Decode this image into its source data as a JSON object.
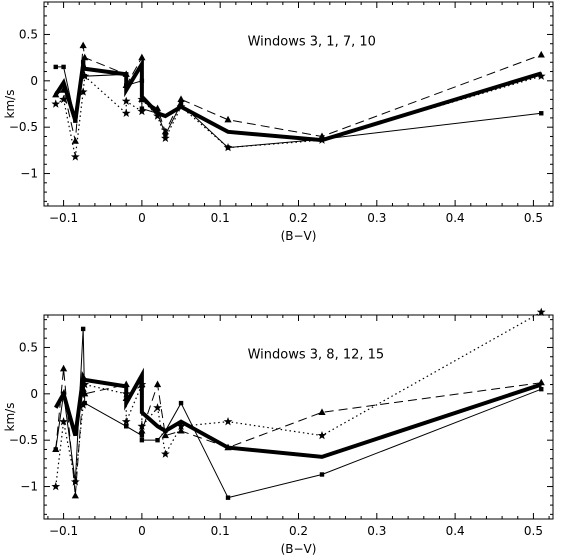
{
  "chart_data": [
    {
      "type": "line",
      "annotation": "Windows 3, 1, 7, 10",
      "xlabel": "(B−V)",
      "ylabel": "km/s",
      "xlim": [
        -0.125,
        0.525
      ],
      "ylim": [
        -1.35,
        0.85
      ],
      "xticks": [
        -0.1,
        0,
        0.1,
        0.2,
        0.3,
        0.4,
        0.5
      ],
      "xticklabels": [
        "−0.1",
        "0",
        "0.1",
        "0.2",
        "0.3",
        "0.4",
        "0.5"
      ],
      "yticks": [
        0.5,
        0,
        -0.5,
        -1
      ],
      "yticklabels": [
        "0.5",
        "0",
        "−0.5",
        "−1"
      ],
      "x": [
        -0.11,
        -0.1,
        -0.085,
        -0.075,
        -0.073,
        -0.02,
        -0.02,
        0.0,
        0.0,
        0.02,
        0.03,
        0.05,
        0.11,
        0.23,
        0.51
      ],
      "series": [
        {
          "style": "thick",
          "marker": "none",
          "values": [
            -0.15,
            -0.02,
            -0.43,
            0.18,
            0.13,
            0.07,
            -0.1,
            0.18,
            -0.17,
            -0.35,
            -0.38,
            -0.28,
            -0.55,
            -0.64,
            0.08
          ]
        },
        {
          "style": "thin",
          "marker": "square",
          "values": [
            0.15,
            0.15,
            -0.43,
            0.2,
            0.05,
            0.07,
            -0.05,
            0.0,
            -0.3,
            -0.35,
            -0.58,
            -0.25,
            -0.72,
            -0.63,
            -0.35
          ]
        },
        {
          "style": "dashed",
          "marker": "triangle",
          "values": [
            -0.15,
            -0.1,
            -0.65,
            0.38,
            0.25,
            0.07,
            -0.05,
            0.25,
            -0.2,
            -0.3,
            -0.55,
            -0.2,
            -0.42,
            -0.6,
            0.28
          ]
        },
        {
          "style": "dotted",
          "marker": "star",
          "values": [
            -0.25,
            -0.2,
            -0.82,
            -0.12,
            0.05,
            -0.35,
            -0.22,
            -0.33,
            -0.2,
            -0.38,
            -0.62,
            -0.28,
            -0.72,
            -0.64,
            0.05
          ]
        }
      ]
    },
    {
      "type": "line",
      "annotation": "Windows 3, 8, 12, 15",
      "xlabel": "(B−V)",
      "ylabel": "km/s",
      "xlim": [
        -0.125,
        0.525
      ],
      "ylim": [
        -1.35,
        0.85
      ],
      "xticks": [
        -0.1,
        0,
        0.1,
        0.2,
        0.3,
        0.4,
        0.5
      ],
      "xticklabels": [
        "−0.1",
        "0",
        "0.1",
        "0.2",
        "0.3",
        "0.4",
        "0.5"
      ],
      "yticks": [
        0.5,
        0,
        -0.5,
        -1
      ],
      "yticklabels": [
        "0.5",
        "0",
        "−0.5",
        "−1"
      ],
      "x": [
        -0.11,
        -0.1,
        -0.085,
        -0.075,
        -0.073,
        -0.02,
        -0.02,
        0.0,
        0.0,
        0.02,
        0.03,
        0.05,
        0.11,
        0.23,
        0.51
      ],
      "series": [
        {
          "style": "thick",
          "marker": "none",
          "values": [
            -0.15,
            0.0,
            -0.45,
            0.18,
            0.15,
            0.08,
            -0.1,
            0.2,
            -0.2,
            -0.35,
            -0.4,
            -0.3,
            -0.58,
            -0.68,
            0.1
          ]
        },
        {
          "style": "thin",
          "marker": "square",
          "values": [
            -0.6,
            0.0,
            -0.95,
            0.7,
            -0.1,
            -0.35,
            -0.35,
            -0.45,
            -0.5,
            -0.5,
            -0.4,
            -0.1,
            -1.12,
            -0.87,
            0.05
          ]
        },
        {
          "style": "dashed",
          "marker": "triangle",
          "values": [
            -0.6,
            0.27,
            -1.1,
            0.05,
            0.0,
            0.1,
            -0.05,
            0.1,
            -0.4,
            0.1,
            -0.45,
            -0.4,
            -0.58,
            -0.2,
            0.12
          ]
        },
        {
          "style": "dotted",
          "marker": "star",
          "values": [
            -1.0,
            -0.3,
            -0.95,
            -0.12,
            0.1,
            0.0,
            -0.3,
            0.1,
            -0.35,
            -0.15,
            -0.65,
            -0.35,
            -0.3,
            -0.45,
            0.88
          ]
        }
      ]
    }
  ]
}
